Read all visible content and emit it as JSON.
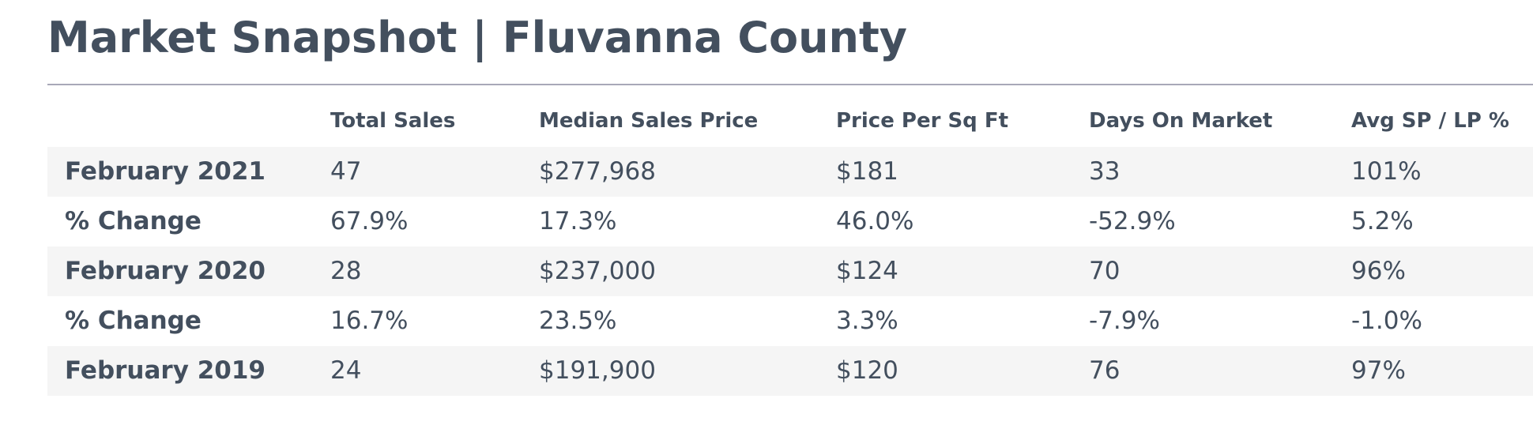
{
  "title": "Market Snapshot | Fluvanna County",
  "columns": [
    "",
    "Total Sales",
    "Median Sales Price",
    "Price Per Sq Ft",
    "Days On Market",
    "Avg SP / LP %"
  ],
  "rows": [
    {
      "label": "February 2021",
      "values": [
        "47",
        "$277,968",
        "$181",
        "33",
        "101%"
      ]
    },
    {
      "label": "% Change",
      "values": [
        "67.9%",
        "17.3%",
        "46.0%",
        "-52.9%",
        "5.2%"
      ]
    },
    {
      "label": "February 2020",
      "values": [
        "28",
        "$237,000",
        "$124",
        "70",
        "96%"
      ]
    },
    {
      "label": "% Change",
      "values": [
        "16.7%",
        "23.5%",
        "3.3%",
        "-7.9%",
        "-1.0%"
      ]
    },
    {
      "label": "February 2019",
      "values": [
        "24",
        "$191,900",
        "$120",
        "76",
        "97%"
      ]
    }
  ],
  "colors": {
    "text": "#434f5e",
    "rule": "#a8a8b8",
    "row_shade": "#f5f5f5"
  }
}
